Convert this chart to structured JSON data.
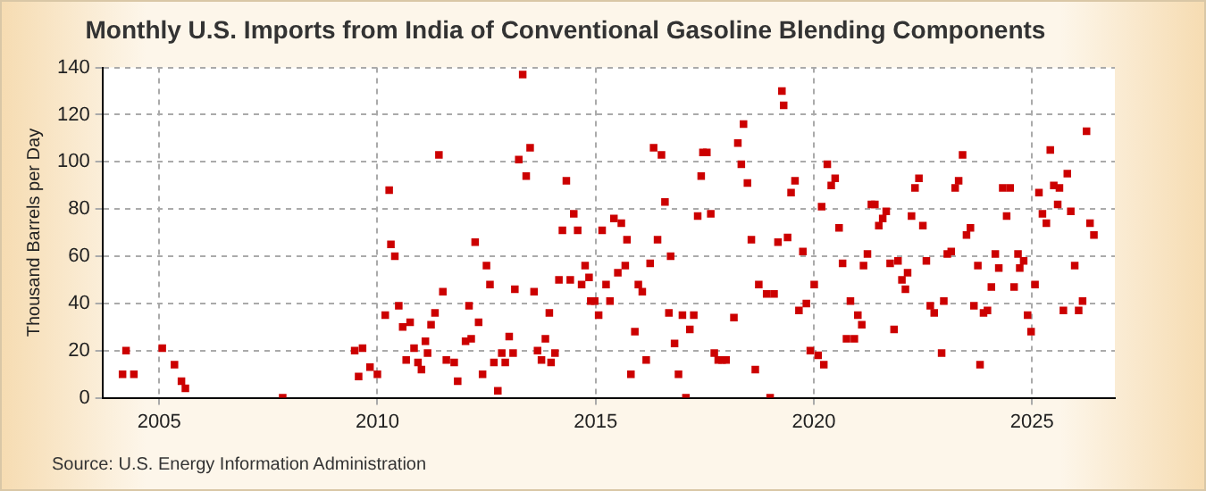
{
  "chart_data": {
    "type": "scatter",
    "title": "Monthly U.S. Imports from India of Conventional Gasoline Blending Components",
    "ylabel": "Thousand Barrels per Day",
    "annotations": [
      "Source: U.S. Energy Information Administration"
    ],
    "x": [
      2004.16,
      2004.24,
      2004.42,
      2005.07,
      2005.35,
      2005.51,
      2005.6,
      2007.83,
      2009.48,
      2009.57,
      2009.66,
      2009.83,
      2010.0,
      2010.18,
      2010.27,
      2010.31,
      2010.4,
      2010.49,
      2010.58,
      2010.66,
      2010.75,
      2010.84,
      2010.93,
      2011.01,
      2011.1,
      2011.15,
      2011.23,
      2011.32,
      2011.41,
      2011.5,
      2011.58,
      2011.76,
      2011.84,
      2012.02,
      2012.1,
      2012.15,
      2012.24,
      2012.32,
      2012.41,
      2012.5,
      2012.58,
      2012.67,
      2012.76,
      2012.85,
      2012.93,
      2013.02,
      2013.11,
      2013.15,
      2013.24,
      2013.33,
      2013.41,
      2013.5,
      2013.59,
      2013.67,
      2013.76,
      2013.85,
      2013.94,
      2013.98,
      2014.07,
      2014.16,
      2014.24,
      2014.33,
      2014.42,
      2014.5,
      2014.59,
      2014.68,
      2014.76,
      2014.85,
      2014.89,
      2014.98,
      2015.07,
      2015.15,
      2015.24,
      2015.33,
      2015.42,
      2015.51,
      2015.59,
      2015.68,
      2015.72,
      2015.81,
      2015.9,
      2015.98,
      2016.07,
      2016.16,
      2016.25,
      2016.33,
      2016.42,
      2016.51,
      2016.59,
      2016.68,
      2016.72,
      2016.81,
      2016.9,
      2016.99,
      2017.07,
      2017.16,
      2017.25,
      2017.34,
      2017.42,
      2017.46,
      2017.55,
      2017.64,
      2017.72,
      2017.81,
      2017.9,
      2017.99,
      2018.17,
      2018.26,
      2018.34,
      2018.39,
      2018.48,
      2018.57,
      2018.66,
      2018.74,
      2018.92,
      2019.0,
      2019.09,
      2019.18,
      2019.27,
      2019.31,
      2019.4,
      2019.48,
      2019.57,
      2019.66,
      2019.75,
      2019.83,
      2019.92,
      2020.01,
      2020.1,
      2020.18,
      2020.23,
      2020.31,
      2020.4,
      2020.49,
      2020.58,
      2020.66,
      2020.75,
      2020.84,
      2020.93,
      2021.01,
      2021.1,
      2021.14,
      2021.23,
      2021.32,
      2021.4,
      2021.49,
      2021.58,
      2021.66,
      2021.75,
      2021.84,
      2021.93,
      2022.02,
      2022.1,
      2022.15,
      2022.24,
      2022.32,
      2022.41,
      2022.5,
      2022.58,
      2022.67,
      2022.76,
      2022.93,
      2022.98,
      2023.06,
      2023.15,
      2023.24,
      2023.32,
      2023.41,
      2023.5,
      2023.59,
      2023.67,
      2023.76,
      2023.81,
      2023.89,
      2023.98,
      2024.07,
      2024.16,
      2024.24,
      2024.33,
      2024.42,
      2024.5,
      2024.59,
      2024.68,
      2024.72,
      2024.81,
      2024.9,
      2024.98,
      2025.07,
      2025.16,
      2025.24,
      2025.33,
      2025.42,
      2025.5,
      2025.59,
      2025.63,
      2025.72,
      2025.81,
      2025.89,
      2025.98,
      2026.07,
      2026.16,
      2026.25,
      2026.33,
      2026.42
    ],
    "values": [
      10,
      20,
      10,
      21,
      14,
      7,
      4,
      0,
      20,
      9,
      21,
      13,
      10,
      35,
      88,
      65,
      60,
      39,
      30,
      16,
      32,
      21,
      15,
      12,
      24,
      19,
      31,
      36,
      103,
      45,
      16,
      15,
      7,
      24,
      39,
      25,
      66,
      32,
      10,
      56,
      48,
      15,
      3,
      19,
      15,
      26,
      19,
      46,
      101,
      137,
      94,
      106,
      45,
      20,
      16,
      25,
      36,
      15,
      19,
      50,
      71,
      92,
      50,
      78,
      71,
      48,
      56,
      51,
      41,
      41,
      35,
      71,
      48,
      41,
      76,
      53,
      74,
      56,
      67,
      10,
      28,
      48,
      45,
      16,
      57,
      106,
      67,
      103,
      83,
      36,
      60,
      23,
      10,
      35,
      0,
      29,
      35,
      77,
      94,
      104,
      104,
      78,
      19,
      16,
      16,
      16,
      34,
      108,
      99,
      116,
      91,
      67,
      12,
      48,
      44,
      0,
      44,
      66,
      130,
      124,
      68,
      87,
      92,
      37,
      62,
      40,
      20,
      48,
      18,
      81,
      14,
      99,
      90,
      93,
      72,
      57,
      25,
      41,
      25,
      35,
      31,
      56,
      61,
      82,
      82,
      73,
      76,
      79,
      57,
      29,
      58,
      50,
      46,
      53,
      77,
      89,
      93,
      73,
      58,
      39,
      36,
      19,
      41,
      61,
      62,
      89,
      92,
      103,
      69,
      72,
      39,
      56,
      14,
      36,
      37,
      47,
      61,
      55,
      89,
      77,
      89,
      47,
      61,
      55,
      58,
      35,
      28,
      48,
      87,
      78,
      74,
      105,
      90,
      82,
      89,
      37,
      95,
      79,
      56,
      37,
      41,
      113,
      74,
      69
    ],
    "color": "#cc0000",
    "marker": "square",
    "xlim": [
      2003.7,
      2026.9
    ],
    "xticks": [
      2005,
      2010,
      2015,
      2020,
      2025
    ],
    "ylim": [
      0,
      140
    ],
    "yticks": [
      0,
      20,
      40,
      60,
      80,
      100,
      120,
      140
    ],
    "grid": true,
    "legend": false
  }
}
